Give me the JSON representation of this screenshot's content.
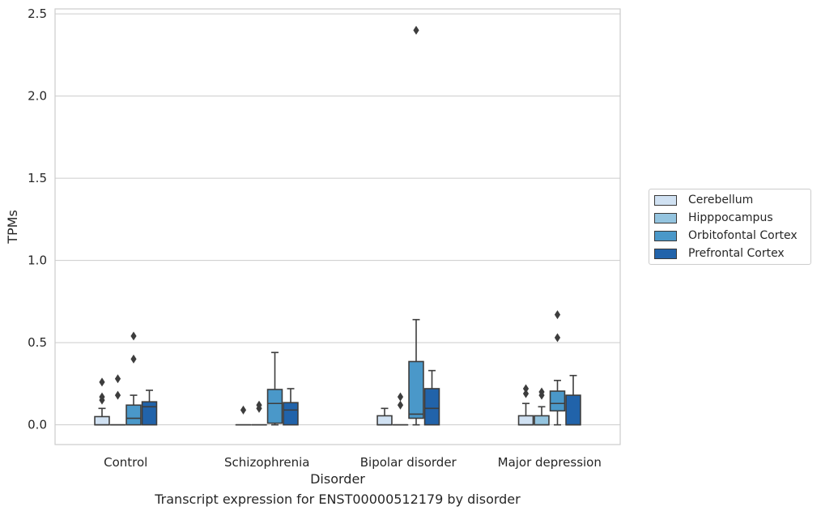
{
  "caption": "Transcript expression for ENST00000512179 by disorder",
  "chart_data": {
    "type": "box",
    "title": "",
    "xlabel": "Disorder",
    "ylabel": "TPMs",
    "categories": [
      "Control",
      "Schizophrenia",
      "Bipolar disorder",
      "Major depression"
    ],
    "ylim": [
      -0.12,
      2.53
    ],
    "yticks": [
      "0.0",
      "0.5",
      "1.0",
      "1.5",
      "2.0",
      "2.5"
    ],
    "grid": true,
    "legend_position": "right",
    "series": [
      {
        "name": "Cerebellum",
        "color": "#d0e1f2",
        "boxes": [
          {
            "q1": 0.0,
            "median": 0.0,
            "q3": 0.05,
            "whisker_low": 0.0,
            "whisker_high": 0.1,
            "outliers": [
              0.15,
              0.17,
              0.26
            ]
          },
          {
            "q1": 0.0,
            "median": 0.0,
            "q3": 0.0,
            "whisker_low": 0.0,
            "whisker_high": 0.0,
            "outliers": [
              0.09
            ]
          },
          {
            "q1": 0.0,
            "median": 0.0,
            "q3": 0.055,
            "whisker_low": 0.0,
            "whisker_high": 0.1,
            "outliers": []
          },
          {
            "q1": 0.0,
            "median": 0.0,
            "q3": 0.055,
            "whisker_low": 0.0,
            "whisker_high": 0.13,
            "outliers": [
              0.19,
              0.22
            ]
          }
        ]
      },
      {
        "name": "Hipppocampus",
        "color": "#94c4df",
        "boxes": [
          {
            "q1": 0.0,
            "median": 0.0,
            "q3": 0.0,
            "whisker_low": 0.0,
            "whisker_high": 0.0,
            "outliers": [
              0.18,
              0.28
            ]
          },
          {
            "q1": 0.0,
            "median": 0.0,
            "q3": 0.0,
            "whisker_low": 0.0,
            "whisker_high": 0.0,
            "outliers": [
              0.1,
              0.12
            ]
          },
          {
            "q1": 0.0,
            "median": 0.0,
            "q3": 0.0,
            "whisker_low": 0.0,
            "whisker_high": 0.0,
            "outliers": [
              0.12,
              0.17
            ]
          },
          {
            "q1": 0.0,
            "median": 0.0,
            "q3": 0.055,
            "whisker_low": 0.0,
            "whisker_high": 0.11,
            "outliers": [
              0.18,
              0.2
            ]
          }
        ]
      },
      {
        "name": "Orbitofontal Cortex",
        "color": "#4a98c9",
        "boxes": [
          {
            "q1": 0.0,
            "median": 0.04,
            "q3": 0.12,
            "whisker_low": 0.0,
            "whisker_high": 0.18,
            "outliers": [
              0.4,
              0.54
            ]
          },
          {
            "q1": 0.01,
            "median": 0.13,
            "q3": 0.215,
            "whisker_low": 0.0,
            "whisker_high": 0.44,
            "outliers": []
          },
          {
            "q1": 0.04,
            "median": 0.065,
            "q3": 0.385,
            "whisker_low": 0.0,
            "whisker_high": 0.64,
            "outliers": [
              2.4
            ]
          },
          {
            "q1": 0.085,
            "median": 0.13,
            "q3": 0.205,
            "whisker_low": 0.0,
            "whisker_high": 0.27,
            "outliers": [
              0.53,
              0.67
            ]
          }
        ]
      },
      {
        "name": "Prefrontal Cortex",
        "color": "#2163aa",
        "boxes": [
          {
            "q1": 0.0,
            "median": 0.11,
            "q3": 0.14,
            "whisker_low": 0.0,
            "whisker_high": 0.21,
            "outliers": []
          },
          {
            "q1": 0.0,
            "median": 0.09,
            "q3": 0.135,
            "whisker_low": 0.0,
            "whisker_high": 0.22,
            "outliers": []
          },
          {
            "q1": 0.0,
            "median": 0.1,
            "q3": 0.22,
            "whisker_low": 0.0,
            "whisker_high": 0.33,
            "outliers": []
          },
          {
            "q1": 0.0,
            "median": 0.0,
            "q3": 0.18,
            "whisker_low": 0.0,
            "whisker_high": 0.3,
            "outliers": []
          }
        ]
      }
    ]
  }
}
